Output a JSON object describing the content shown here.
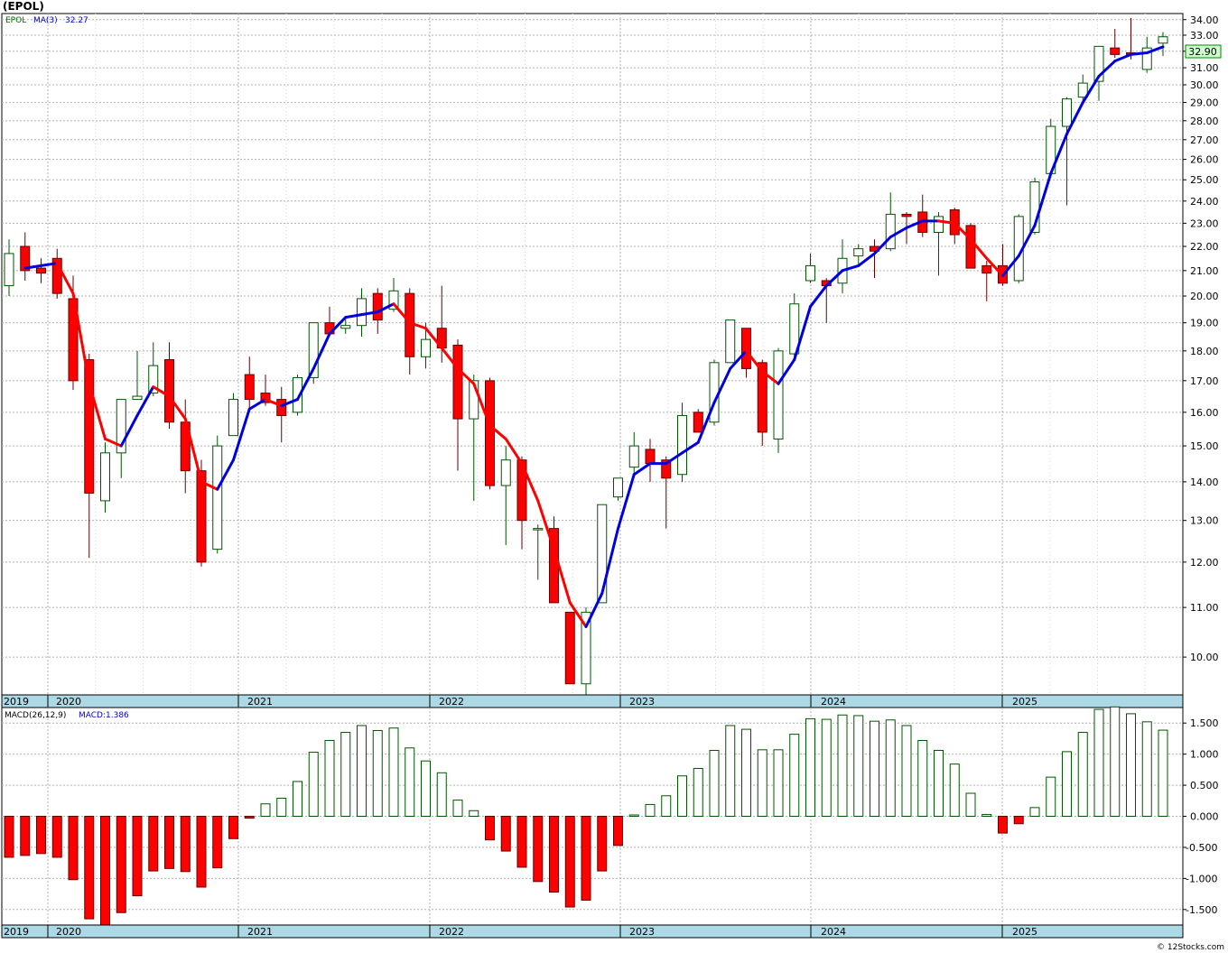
{
  "header": {
    "symbol_title": "(EPOL)",
    "legend_symbol": "EPOL",
    "legend_ma_label": "MA(3)",
    "legend_ma_value": "32.27",
    "last_price": "32.90",
    "footer_credit": "© 12Stocks.com"
  },
  "macd_header": {
    "label": "MACD(26,12,9)",
    "value_label": "MACD:1.386"
  },
  "colors": {
    "up": "#ffffff",
    "up_border": "#005500",
    "down": "#ff0000",
    "ma_rising": "#0000dd",
    "ma_falling": "#ff0000",
    "axis_band": "#add8e6",
    "grid": "#b0b0b0",
    "price_box": "#ccffcc"
  },
  "chart_data": [
    {
      "type": "candlestick",
      "title": "(EPOL)",
      "y_scale": "log",
      "ylim": [
        9.3,
        34.4
      ],
      "y_ticks": [
        10.0,
        11.0,
        12.0,
        13.0,
        14.0,
        15.0,
        16.0,
        17.0,
        18.0,
        19.0,
        20.0,
        21.0,
        22.0,
        23.0,
        24.0,
        25.0,
        26.0,
        27.0,
        28.0,
        29.0,
        30.0,
        31.0,
        32.0,
        33.0,
        34.0
      ],
      "x_labels": [
        "2019",
        "2020",
        "2021",
        "2022",
        "2023",
        "2024",
        "2025"
      ],
      "grid": true,
      "series_ma": {
        "name": "MA(3)",
        "last": 32.27
      },
      "candles": [
        {
          "o": 20.4,
          "h": 22.3,
          "l": 20.0,
          "c": 21.7
        },
        {
          "o": 22.0,
          "h": 22.6,
          "l": 20.6,
          "c": 21.0
        },
        {
          "o": 21.1,
          "h": 21.5,
          "l": 20.5,
          "c": 20.9
        },
        {
          "o": 21.5,
          "h": 21.9,
          "l": 19.9,
          "c": 20.1
        },
        {
          "o": 19.9,
          "h": 20.8,
          "l": 16.7,
          "c": 17.0
        },
        {
          "o": 17.7,
          "h": 17.9,
          "l": 12.1,
          "c": 13.7
        },
        {
          "o": 13.5,
          "h": 15.1,
          "l": 13.2,
          "c": 14.8
        },
        {
          "o": 14.8,
          "h": 16.4,
          "l": 14.1,
          "c": 16.4
        },
        {
          "o": 16.4,
          "h": 18.0,
          "l": 16.4,
          "c": 16.5
        },
        {
          "o": 16.6,
          "h": 18.3,
          "l": 16.5,
          "c": 17.5
        },
        {
          "o": 17.7,
          "h": 18.3,
          "l": 15.5,
          "c": 15.7
        },
        {
          "o": 15.7,
          "h": 16.4,
          "l": 13.7,
          "c": 14.3
        },
        {
          "o": 14.3,
          "h": 14.6,
          "l": 11.9,
          "c": 12.0
        },
        {
          "o": 12.3,
          "h": 15.3,
          "l": 12.2,
          "c": 15.0
        },
        {
          "o": 15.3,
          "h": 16.6,
          "l": 15.3,
          "c": 16.4
        },
        {
          "o": 17.2,
          "h": 17.8,
          "l": 16.1,
          "c": 16.4
        },
        {
          "o": 16.6,
          "h": 17.2,
          "l": 16.2,
          "c": 16.3
        },
        {
          "o": 16.4,
          "h": 16.8,
          "l": 15.1,
          "c": 15.9
        },
        {
          "o": 16.0,
          "h": 17.2,
          "l": 15.9,
          "c": 17.1
        },
        {
          "o": 17.1,
          "h": 19.0,
          "l": 16.9,
          "c": 19.0
        },
        {
          "o": 19.0,
          "h": 19.6,
          "l": 18.5,
          "c": 18.6
        },
        {
          "o": 18.8,
          "h": 19.2,
          "l": 18.6,
          "c": 18.9
        },
        {
          "o": 18.9,
          "h": 20.3,
          "l": 18.5,
          "c": 19.9
        },
        {
          "o": 20.1,
          "h": 20.3,
          "l": 18.6,
          "c": 19.1
        },
        {
          "o": 19.5,
          "h": 20.7,
          "l": 19.4,
          "c": 20.2
        },
        {
          "o": 20.1,
          "h": 20.3,
          "l": 17.2,
          "c": 17.8
        },
        {
          "o": 17.8,
          "h": 19.0,
          "l": 17.4,
          "c": 18.4
        },
        {
          "o": 18.8,
          "h": 20.4,
          "l": 17.6,
          "c": 18.1
        },
        {
          "o": 18.2,
          "h": 18.4,
          "l": 14.3,
          "c": 15.8
        },
        {
          "o": 15.8,
          "h": 17.2,
          "l": 13.5,
          "c": 17.0
        },
        {
          "o": 17.0,
          "h": 17.1,
          "l": 13.8,
          "c": 13.9
        },
        {
          "o": 13.9,
          "h": 15.0,
          "l": 12.4,
          "c": 14.6
        },
        {
          "o": 14.6,
          "h": 14.7,
          "l": 12.3,
          "c": 13.0
        },
        {
          "o": 12.8,
          "h": 12.9,
          "l": 11.6,
          "c": 12.8
        },
        {
          "o": 12.8,
          "h": 13.1,
          "l": 11.1,
          "c": 11.1
        },
        {
          "o": 10.9,
          "h": 10.9,
          "l": 9.5,
          "c": 9.5
        },
        {
          "o": 9.5,
          "h": 11.0,
          "l": 9.3,
          "c": 10.9
        },
        {
          "o": 11.1,
          "h": 13.4,
          "l": 11.1,
          "c": 13.4
        },
        {
          "o": 13.6,
          "h": 14.1,
          "l": 13.5,
          "c": 14.1
        },
        {
          "o": 14.4,
          "h": 15.4,
          "l": 14.2,
          "c": 15.0
        },
        {
          "o": 14.9,
          "h": 15.2,
          "l": 14.0,
          "c": 14.5
        },
        {
          "o": 14.6,
          "h": 14.7,
          "l": 12.8,
          "c": 14.1
        },
        {
          "o": 14.2,
          "h": 16.3,
          "l": 14.0,
          "c": 15.9
        },
        {
          "o": 16.0,
          "h": 16.1,
          "l": 15.4,
          "c": 15.4
        },
        {
          "o": 15.7,
          "h": 17.7,
          "l": 15.6,
          "c": 17.6
        },
        {
          "o": 17.6,
          "h": 19.1,
          "l": 17.6,
          "c": 19.1
        },
        {
          "o": 18.8,
          "h": 18.8,
          "l": 17.1,
          "c": 17.4
        },
        {
          "o": 17.6,
          "h": 17.7,
          "l": 15.0,
          "c": 15.4
        },
        {
          "o": 15.2,
          "h": 18.1,
          "l": 14.8,
          "c": 18.0
        },
        {
          "o": 17.9,
          "h": 20.1,
          "l": 17.8,
          "c": 19.7
        },
        {
          "o": 20.6,
          "h": 21.7,
          "l": 20.5,
          "c": 21.2
        },
        {
          "o": 20.6,
          "h": 20.7,
          "l": 19.0,
          "c": 20.4
        },
        {
          "o": 20.5,
          "h": 22.3,
          "l": 20.1,
          "c": 21.5
        },
        {
          "o": 21.6,
          "h": 22.1,
          "l": 21.2,
          "c": 21.9
        },
        {
          "o": 22.0,
          "h": 22.3,
          "l": 20.7,
          "c": 21.8
        },
        {
          "o": 21.9,
          "h": 24.4,
          "l": 21.8,
          "c": 23.4
        },
        {
          "o": 23.4,
          "h": 23.5,
          "l": 22.1,
          "c": 23.3
        },
        {
          "o": 23.5,
          "h": 24.3,
          "l": 22.4,
          "c": 22.6
        },
        {
          "o": 22.6,
          "h": 23.5,
          "l": 20.8,
          "c": 23.3
        },
        {
          "o": 23.6,
          "h": 23.7,
          "l": 22.1,
          "c": 22.5
        },
        {
          "o": 22.9,
          "h": 23.0,
          "l": 21.1,
          "c": 21.1
        },
        {
          "o": 21.2,
          "h": 21.4,
          "l": 19.8,
          "c": 20.9
        },
        {
          "o": 21.2,
          "h": 22.1,
          "l": 20.4,
          "c": 20.5
        },
        {
          "o": 20.6,
          "h": 23.4,
          "l": 20.5,
          "c": 23.3
        },
        {
          "o": 22.6,
          "h": 25.1,
          "l": 22.5,
          "c": 24.9
        },
        {
          "o": 25.3,
          "h": 28.1,
          "l": 25.1,
          "c": 27.7
        },
        {
          "o": 27.7,
          "h": 29.3,
          "l": 23.8,
          "c": 29.2
        },
        {
          "o": 29.3,
          "h": 30.6,
          "l": 28.9,
          "c": 30.1
        },
        {
          "o": 30.2,
          "h": 32.3,
          "l": 29.1,
          "c": 32.3
        },
        {
          "o": 32.2,
          "h": 33.4,
          "l": 31.6,
          "c": 31.8
        },
        {
          "o": 31.9,
          "h": 34.1,
          "l": 31.5,
          "c": 31.8
        },
        {
          "o": 30.9,
          "h": 32.9,
          "l": 30.7,
          "c": 32.2
        },
        {
          "o": 32.5,
          "h": 33.2,
          "l": 31.7,
          "c": 32.9
        }
      ],
      "ma": [
        null,
        21.1,
        21.2,
        21.3,
        20.1,
        16.9,
        15.2,
        15.0,
        15.9,
        16.8,
        16.5,
        15.8,
        14.0,
        13.8,
        14.6,
        16.1,
        16.4,
        16.2,
        16.4,
        17.4,
        18.6,
        19.2,
        19.3,
        19.4,
        19.7,
        19.0,
        18.8,
        18.1,
        17.4,
        16.9,
        15.6,
        15.2,
        14.5,
        13.5,
        12.3,
        11.1,
        10.6,
        11.3,
        12.8,
        14.2,
        14.5,
        14.5,
        14.8,
        15.1,
        16.3,
        17.4,
        18.0,
        17.3,
        16.9,
        17.7,
        19.6,
        20.4,
        21.0,
        21.2,
        21.7,
        22.4,
        22.8,
        23.1,
        23.1,
        23.0,
        22.3,
        21.5,
        20.8,
        21.6,
        22.9,
        25.3,
        27.3,
        29.0,
        30.5,
        31.4,
        31.8,
        31.9,
        32.27
      ]
    },
    {
      "type": "bar",
      "title": "MACD(26,12,9)",
      "ylim": [
        -1.75,
        1.75
      ],
      "y_ticks": [
        -1.5,
        -1.0,
        -0.5,
        0.0,
        0.5,
        1.0,
        1.5
      ],
      "y_tick_labels": [
        "-1.500",
        "-1.000",
        "-0.500",
        "0.000",
        "0.500",
        "1.000",
        "1.500"
      ],
      "x_labels": [
        "2019",
        "2020",
        "2021",
        "2022",
        "2023",
        "2024",
        "2025"
      ],
      "grid": true,
      "series": [
        {
          "name": "MACD",
          "last": 1.386,
          "values": [
            -0.66,
            -0.63,
            -0.6,
            -0.66,
            -1.02,
            -1.65,
            -1.75,
            -1.55,
            -1.28,
            -0.88,
            -0.84,
            -0.89,
            -1.14,
            -0.83,
            -0.36,
            -0.03,
            0.2,
            0.29,
            0.56,
            1.03,
            1.22,
            1.35,
            1.46,
            1.38,
            1.42,
            1.1,
            0.89,
            0.7,
            0.26,
            0.09,
            -0.38,
            -0.56,
            -0.82,
            -1.05,
            -1.22,
            -1.46,
            -1.35,
            -0.88,
            -0.47,
            0.02,
            0.19,
            0.33,
            0.65,
            0.77,
            1.06,
            1.46,
            1.4,
            1.07,
            1.07,
            1.32,
            1.57,
            1.56,
            1.63,
            1.62,
            1.53,
            1.55,
            1.46,
            1.22,
            1.06,
            0.84,
            0.37,
            0.03,
            -0.27,
            -0.12,
            0.14,
            0.63,
            1.04,
            1.35,
            1.72,
            1.76,
            1.65,
            1.52,
            1.386
          ]
        }
      ]
    }
  ]
}
